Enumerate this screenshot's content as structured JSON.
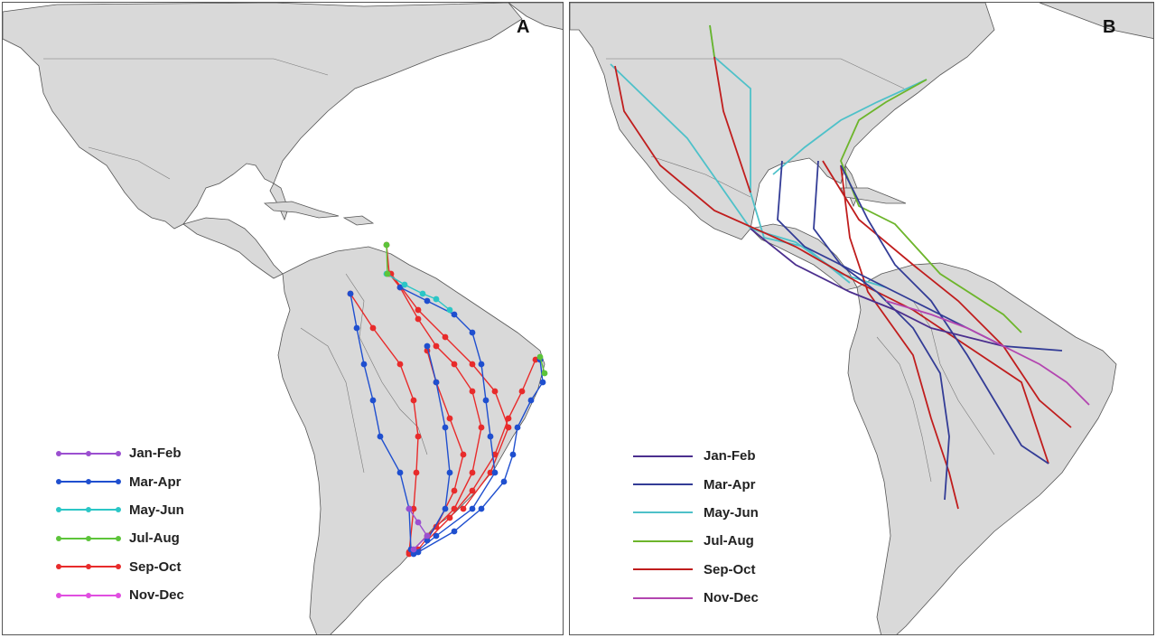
{
  "figure": {
    "land_color": "#d9d9d9",
    "coast_color": "#555555",
    "water_color": "#ffffff",
    "panels": [
      {
        "letter": "A",
        "legend": [
          {
            "label": "Jan-Feb",
            "color": "#9b4fd0",
            "marker": "dot"
          },
          {
            "label": "Mar-Apr",
            "color": "#1f4fcf",
            "marker": "dot"
          },
          {
            "label": "May-Jun",
            "color": "#2bc6c6",
            "marker": "dot"
          },
          {
            "label": "Jul-Aug",
            "color": "#5dc43a",
            "marker": "dot"
          },
          {
            "label": "Sep-Oct",
            "color": "#e82b2b",
            "marker": "dot"
          },
          {
            "label": "Nov-Dec",
            "color": "#e04ee0",
            "marker": "dot"
          }
        ]
      },
      {
        "letter": "B",
        "legend": [
          {
            "label": "Jan-Feb",
            "color": "#4b2f8e",
            "marker": "line"
          },
          {
            "label": "Mar-Apr",
            "color": "#333c96",
            "marker": "line"
          },
          {
            "label": "May-Jun",
            "color": "#4ec1c9",
            "marker": "line"
          },
          {
            "label": "Jul-Aug",
            "color": "#6db52b",
            "marker": "line"
          },
          {
            "label": "Sep-Oct",
            "color": "#c01d1d",
            "marker": "line"
          },
          {
            "label": "Nov-Dec",
            "color": "#b345b0",
            "marker": "line"
          }
        ]
      }
    ]
  }
}
